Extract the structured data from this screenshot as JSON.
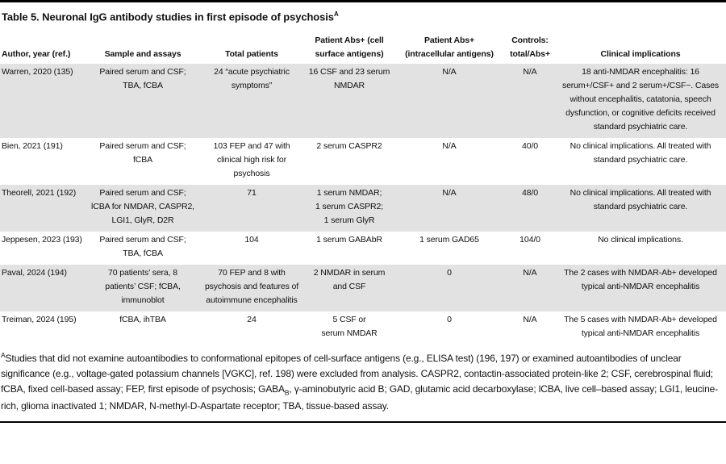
{
  "title": {
    "text": "Table 5. Neuronal IgG antibody studies in first episode of psychosis",
    "superscript": "A"
  },
  "colors": {
    "stripe": "#e2e2e2",
    "rule": "#000000",
    "text": "#111111",
    "background": "#ffffff"
  },
  "table": {
    "columns": [
      "Author, year (ref.)",
      "Sample and assays",
      "Total patients",
      "Patient Abs+ (cell\nsurface antigens)",
      "Patient Abs+\n(intracellular antigens)",
      "Controls:\ntotal/Abs+",
      "Clinical implications"
    ],
    "rows": [
      [
        "Warren, 2020 (135)",
        "Paired serum and CSF;\nTBA, fCBA",
        "24 “acute psychiatric\nsymptoms”",
        "16 CSF and 23 serum\nNMDAR",
        "N/A",
        "N/A",
        "18 anti-NMDAR encephalitis: 16 serum+/CSF+ and 2 serum+/CSF−. Cases without encephalitis, catatonia, speech dysfunction, or cognitive deficits received standard psychiatric care."
      ],
      [
        "Bien, 2021 (191)",
        "Paired serum and CSF;\nfCBA",
        "103 FEP and 47 with\nclinical high risk for\npsychosis",
        "2 serum CASPR2",
        "N/A",
        "40/0",
        "No clinical implications. All treated with standard psychiatric care."
      ],
      [
        "Theorell, 2021 (192)",
        "Paired serum and CSF;\nlCBA for NMDAR, CASPR2,\nLGI1, GlyR, D2R",
        "71",
        "1 serum NMDAR;\n1 serum CASPR2;\n1 serum GlyR",
        "N/A",
        "48/0",
        "No clinical implications. All treated with standard psychiatric care."
      ],
      [
        "Jeppesen, 2023 (193)",
        "Paired serum and CSF;\nTBA, fCBA",
        "104",
        "1 serum GABAbR",
        "1 serum GAD65",
        "104/0",
        "No clinical implications."
      ],
      [
        "Paval, 2024 (194)",
        "70 patients’ sera, 8\npatients’ CSF; fCBA,\nimmunoblot",
        "70 FEP and 8 with\npsychosis and features of\nautoimmune encephalitis",
        "2 NMDAR in serum\nand CSF",
        "0",
        "N/A",
        "The 2 cases with NMDAR-Ab+ developed typical anti-NMDAR encephalitis"
      ],
      [
        "Treiman, 2024 (195)",
        "fCBA, ihTBA",
        "24",
        "5 CSF or\nserum NMDAR",
        "0",
        "N/A",
        "The 5 cases with NMDAR-Ab+ developed typical anti-NMDAR encephalitis"
      ]
    ]
  },
  "footnote": {
    "superscript": "A",
    "part1": "Studies that did not examine autoantibodies to conformational epitopes of cell-surface antigens (e.g., ELISA test) (196, 197) or examined autoantibodies of unclear significance (e.g., voltage-gated potassium channels [VGKC], ref. 198) were excluded from analysis. CASPR2, contactin-associated protein-like 2; CSF, cerebrospinal fluid; fCBA, fixed cell-based assay; FEP, first episode of psychosis; GABA",
    "gaba_subscript": "B",
    "part2": ", γ-aminobutyric acid B; GAD, glutamic acid decarboxylase; lCBA, live cell–based assay; LGI1, leucine-rich, glioma inactivated 1; NMDAR, N-methyl-D-Aspartate receptor; TBA, tissue-based assay."
  }
}
